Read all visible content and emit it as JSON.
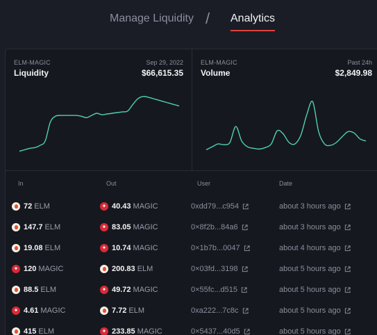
{
  "tabs": {
    "manage_label": "Manage Liquidity",
    "separator": "/",
    "analytics_label": "Analytics",
    "accent": "#e0413f"
  },
  "liquidity": {
    "pair": "ELM-MAGIC",
    "label": "Liquidity",
    "date": "Sep 29, 2022",
    "value": "$66,615.35"
  },
  "volume": {
    "pair": "ELM-MAGIC",
    "label": "Volume",
    "period": "Past 24h",
    "value": "$2,849.98"
  },
  "chart_data": [
    {
      "type": "line",
      "title": "Liquidity",
      "color": "#4fd1b5",
      "values": [
        8,
        10,
        12,
        13,
        16,
        22,
        48,
        56,
        57,
        57,
        57,
        57,
        56,
        54,
        57,
        60,
        58,
        59,
        60,
        61,
        62,
        63,
        72,
        80,
        83,
        82,
        80,
        78,
        76,
        74,
        72,
        70
      ]
    },
    {
      "type": "line",
      "title": "Volume",
      "color": "#4fd1b5",
      "values": [
        10,
        14,
        18,
        17,
        20,
        42,
        22,
        14,
        12,
        11,
        13,
        18,
        36,
        32,
        20,
        18,
        30,
        58,
        76,
        35,
        18,
        16,
        20,
        28,
        35,
        33,
        25,
        22
      ]
    }
  ],
  "table": {
    "headers": {
      "in": "In",
      "out": "Out",
      "user": "User",
      "date": "Date"
    },
    "rows": [
      {
        "in_amt": "72",
        "in_sym": "ELM",
        "in_tok": "elm",
        "out_amt": "40.43",
        "out_sym": "MAGIC",
        "out_tok": "magic",
        "user": "0xdd79...c954",
        "date": "about 3 hours ago"
      },
      {
        "in_amt": "147.7",
        "in_sym": "ELM",
        "in_tok": "elm",
        "out_amt": "83.05",
        "out_sym": "MAGIC",
        "out_tok": "magic",
        "user": "0×8f2b...84a6",
        "date": "about 3 hours ago"
      },
      {
        "in_amt": "19.08",
        "in_sym": "ELM",
        "in_tok": "elm",
        "out_amt": "10.74",
        "out_sym": "MAGIC",
        "out_tok": "magic",
        "user": "0×1b7b...0047",
        "date": "about 4 hours ago"
      },
      {
        "in_amt": "120",
        "in_sym": "MAGIC",
        "in_tok": "magic",
        "out_amt": "200.83",
        "out_sym": "ELM",
        "out_tok": "elm",
        "user": "0×03fd...3198",
        "date": "about 5 hours ago"
      },
      {
        "in_amt": "88.5",
        "in_sym": "ELM",
        "in_tok": "elm",
        "out_amt": "49.72",
        "out_sym": "MAGIC",
        "out_tok": "magic",
        "user": "0×55fc...d515",
        "date": "about 5 hours ago"
      },
      {
        "in_amt": "4.61",
        "in_sym": "MAGIC",
        "in_tok": "magic",
        "out_amt": "7.72",
        "out_sym": "ELM",
        "out_tok": "elm",
        "user": "0xa222...7c8c",
        "date": "about 5 hours ago"
      },
      {
        "in_amt": "415",
        "in_sym": "ELM",
        "in_tok": "elm",
        "out_amt": "233.85",
        "out_sym": "MAGIC",
        "out_tok": "magic",
        "user": "0×5437...40d5",
        "date": "about 5 hours ago"
      }
    ]
  }
}
